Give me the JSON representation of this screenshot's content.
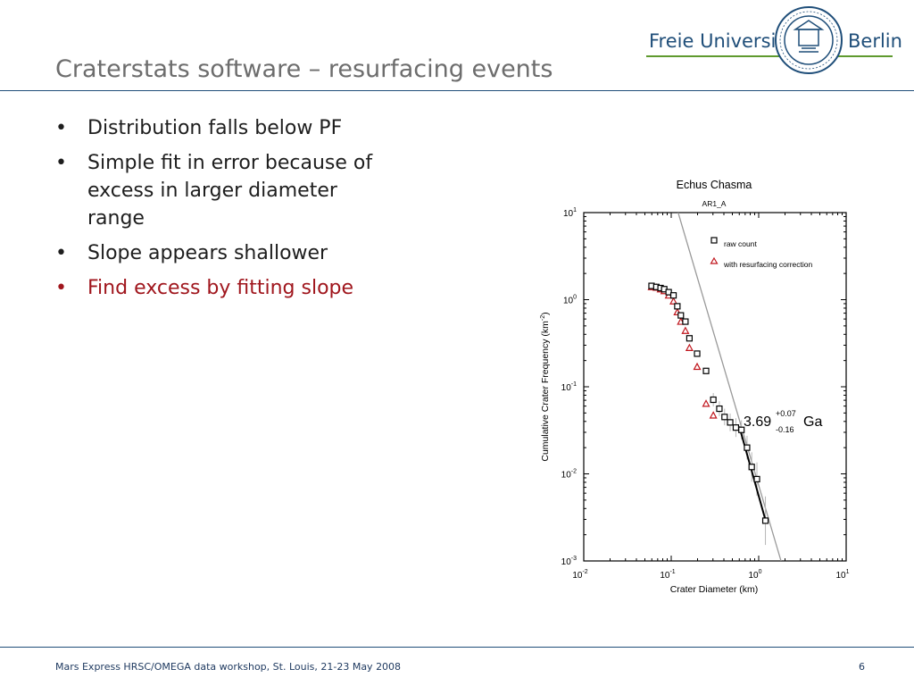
{
  "slide": {
    "title": "Craterstats software – resurfacing events",
    "logo": {
      "left_text": "Freie Universität",
      "right_text": "Berlin",
      "seal_icon": "university-seal-icon",
      "accent": "#5f9a2f"
    },
    "bullets": [
      {
        "text": "Distribution falls below PF",
        "highlight": false
      },
      {
        "text": "Simple fit in error because of excess in larger diameter range",
        "highlight": false
      },
      {
        "text": "Slope appears shallower",
        "highlight": false
      },
      {
        "text": "Find excess by fitting slope",
        "highlight": true
      }
    ],
    "footer": "Mars Express HRSC/OMEGA data workshop, St. Louis, 21-23 May 2008",
    "page_number": "6",
    "colors": {
      "title": "#6d6d6d",
      "rule": "#1f4e79",
      "highlight": "#a0161d"
    }
  },
  "chart_data": {
    "type": "scatter",
    "title": "Echus Chasma",
    "subtitle": "AR1_A",
    "xlabel": "Crater Diameter (km)",
    "ylabel_main": "Cumulative Crater Frequency (km",
    "ylabel_exp": "-2",
    "ylabel_close": ")",
    "x_scale": "log",
    "y_scale": "log",
    "xlim": [
      0.01,
      10
    ],
    "ylim": [
      0.001,
      10
    ],
    "x_ticks": [
      {
        "base": "10",
        "exp": "-2",
        "value": 0.01
      },
      {
        "base": "10",
        "exp": "-1",
        "value": 0.1
      },
      {
        "base": "10",
        "exp": "0",
        "value": 1
      },
      {
        "base": "10",
        "exp": "1",
        "value": 10
      }
    ],
    "y_ticks": [
      {
        "base": "10",
        "exp": "-3",
        "value": 0.001
      },
      {
        "base": "10",
        "exp": "-2",
        "value": 0.01
      },
      {
        "base": "10",
        "exp": "-1",
        "value": 0.1
      },
      {
        "base": "10",
        "exp": "0",
        "value": 1
      },
      {
        "base": "10",
        "exp": "1",
        "value": 10
      }
    ],
    "series": [
      {
        "name": "raw count",
        "marker": "square",
        "color": "#000000",
        "x": [
          0.0596,
          0.0676,
          0.0756,
          0.0832,
          0.0935,
          0.1062,
          0.1175,
          0.1288,
          0.1453,
          0.1615,
          0.1978,
          0.2502,
          0.3028,
          0.3552,
          0.4074,
          0.4719,
          0.5486,
          0.6354,
          0.7359,
          0.8323,
          0.9546,
          1.1937
        ],
        "y": [
          1.44,
          1.4,
          1.36,
          1.32,
          1.22,
          1.12,
          0.84,
          0.66,
          0.56,
          0.36,
          0.24,
          0.152,
          0.071,
          0.056,
          0.045,
          0.039,
          0.034,
          0.032,
          0.02,
          0.012,
          0.0087,
          0.0029
        ]
      },
      {
        "name": "with resurfacing correction",
        "marker": "triangle",
        "color": "#c0161d",
        "x": [
          0.0596,
          0.0676,
          0.0756,
          0.0832,
          0.0935,
          0.1062,
          0.1175,
          0.1288,
          0.1453,
          0.1615,
          0.1978,
          0.2502,
          0.3028
        ],
        "y": [
          1.4,
          1.38,
          1.32,
          1.26,
          1.12,
          0.96,
          0.72,
          0.56,
          0.44,
          0.28,
          0.17,
          0.064,
          0.047
        ]
      }
    ],
    "fit": {
      "age": "3.69",
      "plus": "+0.07",
      "minus": "-0.16",
      "unit": "Ga",
      "x": [
        0.6,
        1.2
      ],
      "y": [
        0.035,
        0.0029
      ]
    },
    "isochron": {
      "x": [
        0.12,
        1.8
      ],
      "y": [
        10,
        0.001
      ],
      "color": "#999999"
    },
    "grid": false,
    "legend_position": "top-right"
  }
}
